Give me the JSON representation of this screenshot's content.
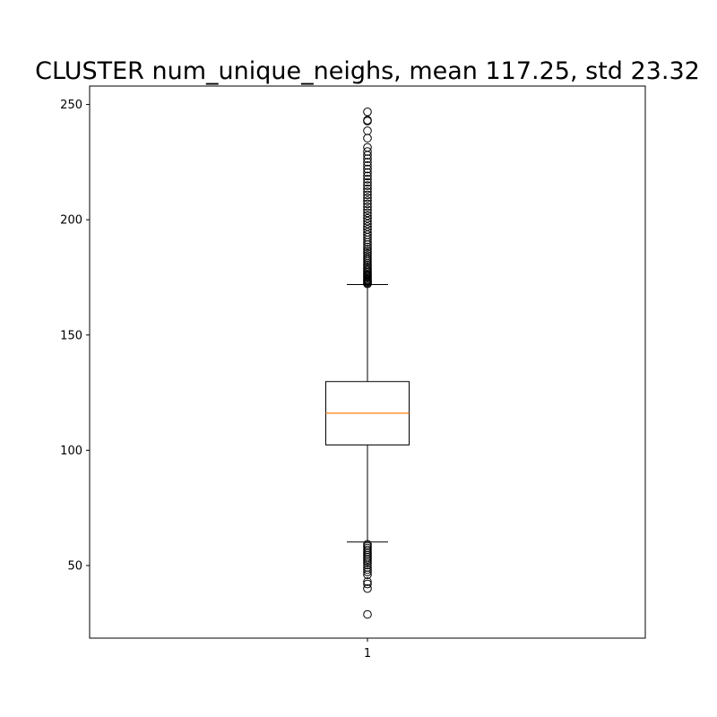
{
  "chart_data": {
    "type": "boxplot",
    "title": "CLUSTER num_unique_neighs, mean 117.25, std 23.32",
    "xlabel": "",
    "ylabel": "",
    "categories": [
      "1"
    ],
    "ylim": [
      18.5,
      258
    ],
    "yticks": [
      50,
      100,
      150,
      200,
      250
    ],
    "grid": false,
    "legend": "none",
    "boxes": [
      {
        "category": "1",
        "q1": 102.3,
        "median": 116.1,
        "q3": 129.8,
        "whisker_low": 60.2,
        "whisker_high": 171.9,
        "outliers_high": [
          172.2,
          172.6,
          173.0,
          173.4,
          173.8,
          174.2,
          174.7,
          175.1,
          175.6,
          176.1,
          176.6,
          177.2,
          177.8,
          178.4,
          179.1,
          179.8,
          180.5,
          181.2,
          182.0,
          182.8,
          183.6,
          184.5,
          185.4,
          186.3,
          187.2,
          188.2,
          189.2,
          190.2,
          191.3,
          192.4,
          193.5,
          194.6,
          195.8,
          197.0,
          198.2,
          199.4,
          200.6,
          201.8,
          203.0,
          204.3,
          205.6,
          206.9,
          208.2,
          209.5,
          210.8,
          212.1,
          213.4,
          214.8,
          216.2,
          217.6,
          219.0,
          220.5,
          222.0,
          223.5,
          225.0,
          226.5,
          228.0,
          229.6,
          231.4,
          235.4,
          238.6,
          242.8,
          243.2,
          246.8
        ],
        "outliers_low": [
          59.2,
          58.4,
          57.6,
          56.8,
          56.0,
          55.2,
          54.4,
          53.6,
          52.8,
          52.0,
          51.2,
          50.2,
          49.2,
          48.2,
          47.2,
          46.0,
          43.0,
          42.0,
          40.0,
          28.8
        ]
      }
    ],
    "colors": {
      "box": "#000000",
      "median": "#ff7f0e",
      "whisker": "#000000",
      "outlier": "#000000"
    }
  }
}
